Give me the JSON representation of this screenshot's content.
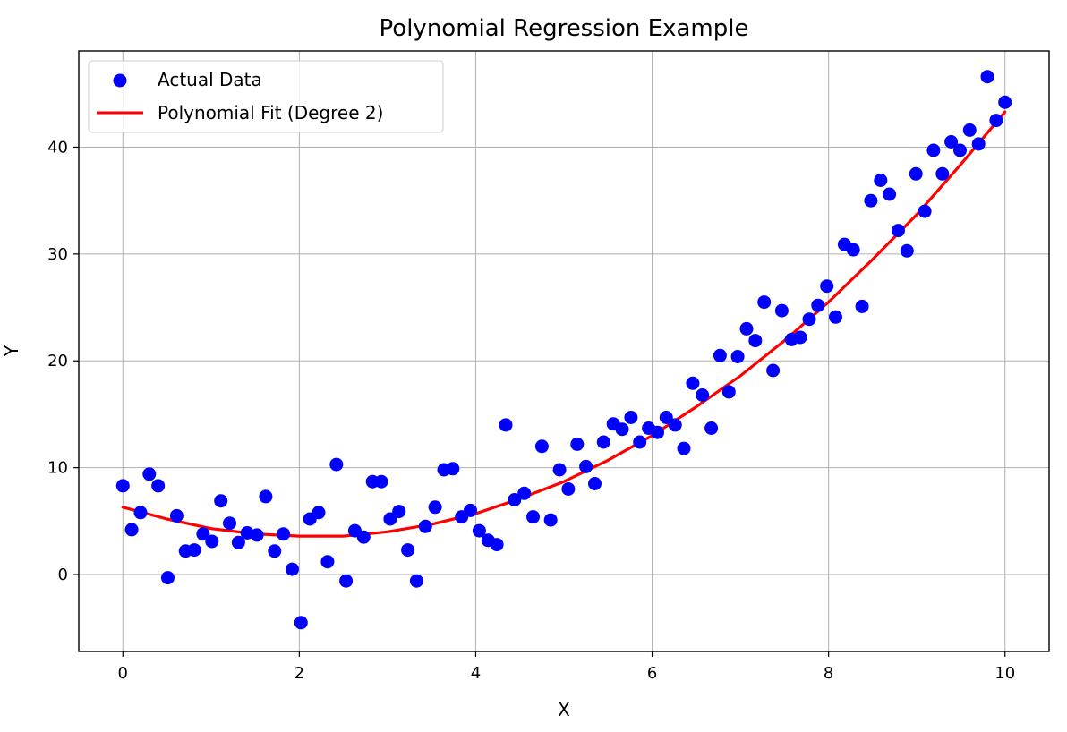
{
  "chart_data": {
    "type": "scatter",
    "title": "Polynomial Regression Example",
    "xlabel": "X",
    "ylabel": "Y",
    "xlim": [
      -0.5,
      10.5
    ],
    "ylim": [
      -7.2,
      49
    ],
    "xticks": [
      0,
      2,
      4,
      6,
      8,
      10
    ],
    "yticks": [
      0,
      10,
      20,
      30,
      40
    ],
    "grid": true,
    "legend_position": "top-left",
    "series": [
      {
        "name": "Actual Data",
        "kind": "scatter",
        "color": "#0000ff",
        "x": [
          0.0,
          0.1,
          0.2,
          0.3,
          0.4,
          0.51,
          0.61,
          0.71,
          0.81,
          0.91,
          1.01,
          1.11,
          1.21,
          1.31,
          1.41,
          1.52,
          1.62,
          1.72,
          1.82,
          1.92,
          2.02,
          2.12,
          2.22,
          2.32,
          2.42,
          2.53,
          2.63,
          2.73,
          2.83,
          2.93,
          3.03,
          3.13,
          3.23,
          3.33,
          3.43,
          3.54,
          3.64,
          3.74,
          3.84,
          3.94,
          4.04,
          4.14,
          4.24,
          4.34,
          4.44,
          4.55,
          4.65,
          4.75,
          4.85,
          4.95,
          5.05,
          5.15,
          5.25,
          5.35,
          5.45,
          5.56,
          5.66,
          5.76,
          5.86,
          5.96,
          6.06,
          6.16,
          6.26,
          6.36,
          6.46,
          6.57,
          6.67,
          6.77,
          6.87,
          6.97,
          7.07,
          7.17,
          7.27,
          7.37,
          7.47,
          7.58,
          7.68,
          7.78,
          7.88,
          7.98,
          8.08,
          8.18,
          8.28,
          8.38,
          8.48,
          8.59,
          8.69,
          8.79,
          8.89,
          8.99,
          9.09,
          9.19,
          9.29,
          9.39,
          9.49,
          9.6,
          9.7,
          9.8,
          9.9,
          10.0
        ],
        "y": [
          8.3,
          4.2,
          5.8,
          9.4,
          8.3,
          -0.3,
          5.5,
          2.2,
          2.3,
          3.8,
          3.1,
          6.9,
          4.8,
          3.0,
          3.9,
          3.7,
          7.3,
          2.2,
          3.8,
          0.5,
          -4.5,
          5.2,
          5.8,
          1.2,
          10.3,
          -0.6,
          4.1,
          3.5,
          8.7,
          8.7,
          5.2,
          5.9,
          2.3,
          -0.6,
          4.5,
          6.3,
          9.8,
          9.9,
          5.4,
          6.0,
          4.1,
          3.2,
          2.8,
          14.0,
          7.0,
          7.6,
          5.4,
          12.0,
          5.1,
          9.8,
          8.0,
          12.2,
          10.1,
          8.5,
          12.4,
          14.1,
          13.6,
          14.7,
          12.4,
          13.7,
          13.3,
          14.7,
          14.0,
          11.8,
          17.9,
          16.8,
          13.7,
          20.5,
          17.1,
          20.4,
          23.0,
          21.9,
          25.5,
          19.1,
          24.7,
          22.0,
          22.2,
          23.9,
          25.2,
          27.0,
          24.1,
          30.9,
          30.4,
          25.1,
          35.0,
          36.9,
          35.6,
          32.2,
          30.3,
          37.5,
          34.0,
          39.7,
          37.5,
          40.5,
          39.7,
          41.6,
          40.3,
          46.6,
          42.5,
          44.2
        ]
      },
      {
        "name": "Polynomial Fit (Degree 2)",
        "kind": "line",
        "color": "#ff0000",
        "x": [
          0,
          0.5,
          1,
          1.5,
          2,
          2.5,
          3,
          3.5,
          4,
          4.5,
          5,
          5.5,
          6,
          6.5,
          7,
          7.5,
          8,
          8.5,
          9,
          9.5,
          10
        ],
        "y": [
          6.3,
          5.2,
          4.3,
          3.8,
          3.6,
          3.6,
          4.0,
          4.7,
          5.7,
          7.1,
          8.7,
          10.7,
          13.0,
          15.7,
          18.6,
          21.9,
          25.5,
          29.5,
          33.7,
          38.4,
          43.3
        ]
      }
    ]
  }
}
